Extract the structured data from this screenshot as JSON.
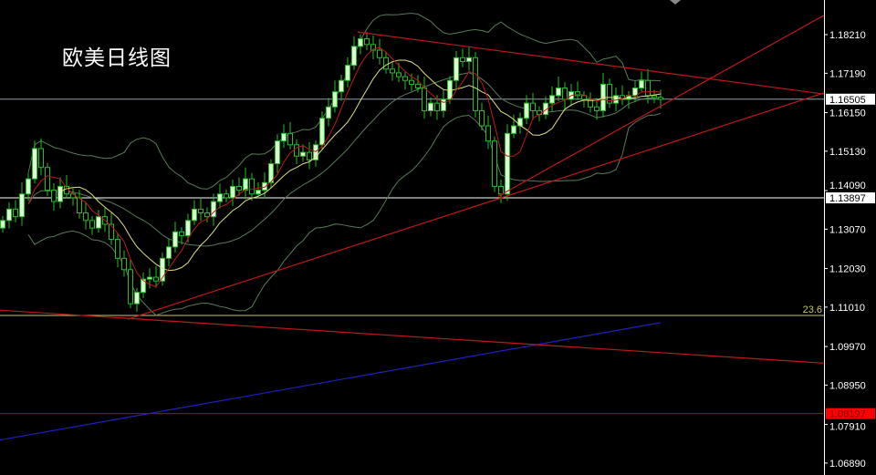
{
  "title": "欧美日线图",
  "chart_data": {
    "type": "candlestick",
    "title": "欧美日线图",
    "ylim": [
      1.0665,
      1.1905
    ],
    "y_ticks": [
      "1.18210",
      "1.17190",
      "1.16150",
      "1.15130",
      "1.14090",
      "1.13070",
      "1.12030",
      "1.11010",
      "1.09970",
      "1.08950",
      "1.07910",
      "1.06890"
    ],
    "close": [
      1.133,
      1.136,
      1.134,
      1.14,
      1.144,
      1.152,
      1.147,
      1.141,
      1.138,
      1.142,
      1.14,
      1.139,
      1.135,
      1.133,
      1.131,
      1.134,
      1.132,
      1.128,
      1.123,
      1.12,
      1.111,
      1.114,
      1.1175,
      1.118,
      1.117,
      1.123,
      1.126,
      1.13,
      1.129,
      1.133,
      1.136,
      1.135,
      1.134,
      1.138,
      1.14,
      1.139,
      1.142,
      1.141,
      1.144,
      1.14,
      1.141,
      1.143,
      1.148,
      1.154,
      1.156,
      1.153,
      1.15,
      1.151,
      1.149,
      1.153,
      1.16,
      1.163,
      1.167,
      1.17,
      1.174,
      1.179,
      1.181,
      1.1795,
      1.178,
      1.176,
      1.173,
      1.172,
      1.171,
      1.17,
      1.169,
      1.168,
      1.162,
      1.164,
      1.162,
      1.165,
      1.17,
      1.176,
      1.175,
      1.176,
      1.162,
      1.158,
      1.154,
      1.142,
      1.14,
      1.156,
      1.158,
      1.16,
      1.164,
      1.162,
      1.161,
      1.164,
      1.166,
      1.168,
      1.165,
      1.167,
      1.166,
      1.165,
      1.163,
      1.162,
      1.169,
      1.164,
      1.166,
      1.165,
      1.166,
      1.168,
      1.17,
      1.166,
      1.1655,
      1.165
    ],
    "indicators": {
      "bollinger_period": 20,
      "ma_fast_period": 5,
      "ma_slow_period": 10,
      "ma_long": {
        "start": 1.075,
        "end": 1.106,
        "color": "#2020c0"
      }
    },
    "horizontal_lines": [
      {
        "price": 1.16505,
        "label": "1.16505",
        "color": "#8aa0b0",
        "label_bg": "#ffffff",
        "label_fg": "#000000"
      },
      {
        "price": 1.13897,
        "label": "1.13897",
        "color": "#ffffff",
        "label_bg": "#ffffff",
        "label_fg": "#000000"
      },
      {
        "price": 1.1079,
        "label": "23.6",
        "color": "#c8c860",
        "fib": true
      },
      {
        "price": 1.08197,
        "label": "1.08197",
        "color": "#c00000",
        "label_bg": "#ff0000",
        "label_fg": "#800000"
      }
    ],
    "trendlines": [
      {
        "from_index": 56,
        "from": 1.1828,
        "to": 1.1664,
        "color": "#c01818"
      },
      {
        "from_index": 20,
        "from": 1.1069,
        "to": 1.1667,
        "color": "#c01818"
      },
      {
        "from_index": 78,
        "from": 1.1394,
        "to": 1.1872,
        "color": "#c01818"
      },
      {
        "from_index": 0,
        "from": 1.1093,
        "to": 1.0953,
        "color": "#c01818"
      }
    ],
    "colors": {
      "background": "#000000",
      "candle_outline": "#22c022",
      "bull_fill": "#d8ffd0",
      "bear_fill": "#000000",
      "ma_fast": "#c01818",
      "ma_slow": "#e0e080",
      "bands": "#5a7a5a"
    }
  }
}
